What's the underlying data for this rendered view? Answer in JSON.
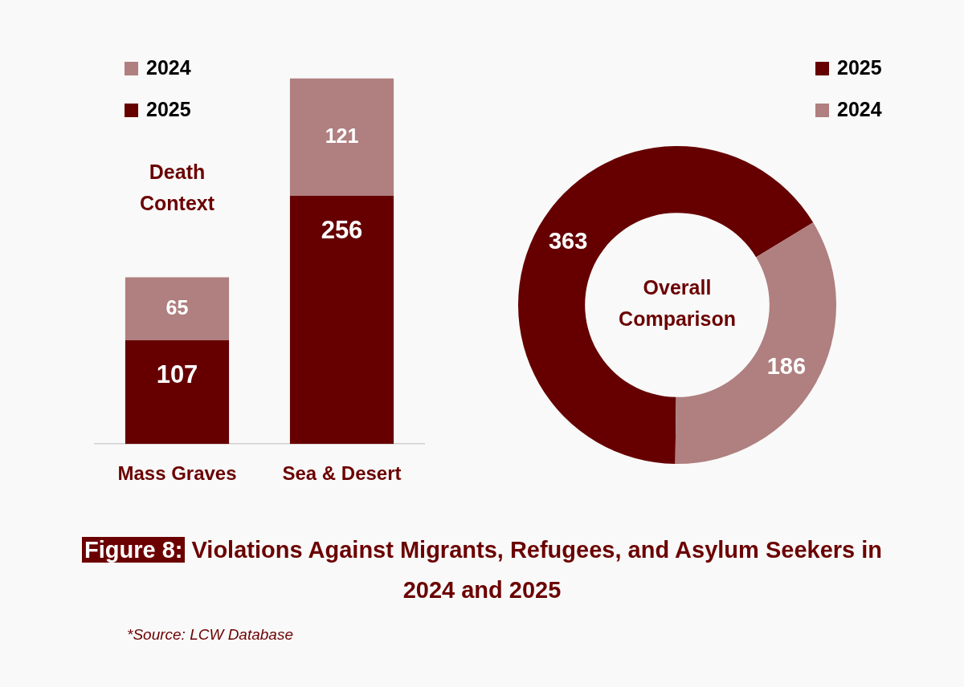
{
  "chart_data": [
    {
      "type": "bar",
      "stacked": true,
      "title": "Figure 8: Violations Against Migrants, Refugees, and Asylum Seekers in 2024 and 2025",
      "categories": [
        "Mass Graves",
        "Sea & Desert"
      ],
      "series": [
        {
          "name": "2025",
          "color": "#660000",
          "values": [
            107,
            256
          ]
        },
        {
          "name": "2024",
          "color": "#b07f7f",
          "values": [
            65,
            121
          ]
        }
      ],
      "data_labels": true,
      "legend": "top left",
      "grid": false,
      "tick_labels": "x",
      "annotations": [
        "Death Context",
        "*Source: LCW Database"
      ]
    },
    {
      "type": "donut",
      "categories": [
        "2025",
        "2024"
      ],
      "values": [
        363,
        186
      ],
      "colors": [
        "#660000",
        "#b07f7f"
      ],
      "data_labels": true,
      "legend": "top right",
      "annotations": [
        "Overall Comparison"
      ]
    }
  ]
}
